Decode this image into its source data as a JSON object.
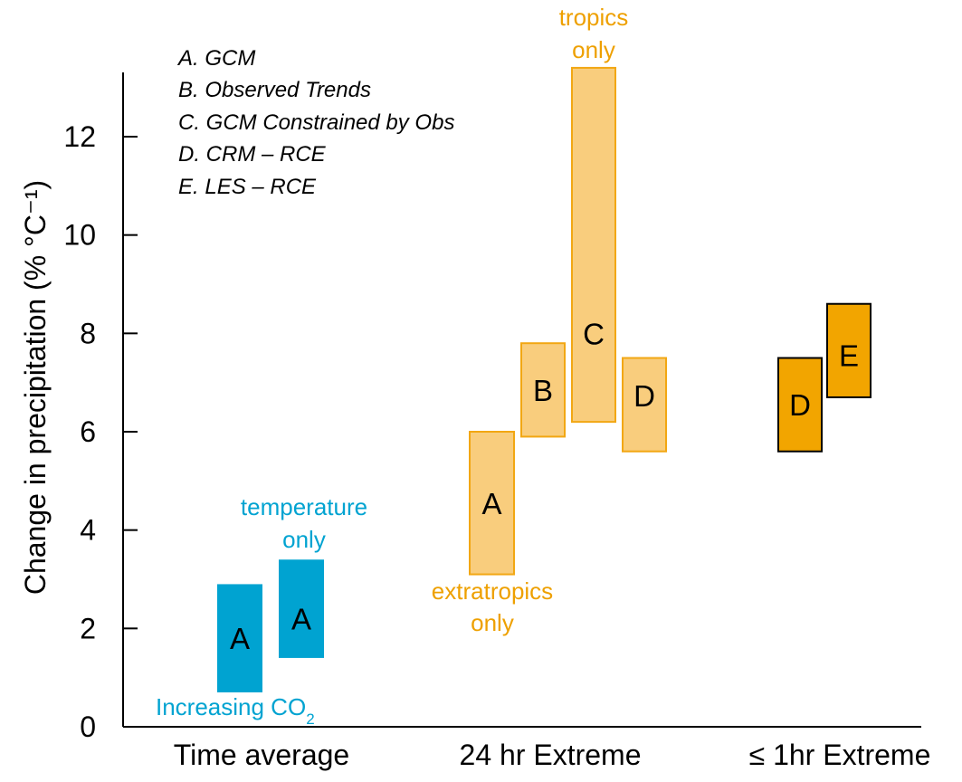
{
  "chart_data": {
    "type": "bar",
    "subtype": "floating-range",
    "ylabel": "Change in precipitation (% °C⁻¹)",
    "ylim": [
      0,
      13.4
    ],
    "yticks": [
      "0",
      "2",
      "4",
      "6",
      "8",
      "10",
      "12"
    ],
    "grid": false,
    "categories": [
      "Time average",
      "24 hr Extreme",
      "≤ 1hr Extreme"
    ],
    "legend": {
      "placement": "top-left",
      "items": [
        "A. GCM",
        "B. Observed Trends",
        "C. GCM Constrained by Obs",
        "D. CRM – RCE",
        "E. LES – RCE"
      ]
    },
    "colors": {
      "time_average": "#00a3d1",
      "extreme_24hr_fill": "#f9cd7d",
      "extreme_24hr_edge": "#f2a713",
      "extreme_1hr_fill": "#f2a500",
      "annotation_blue": "#00a3d1",
      "annotation_orange": "#eea000"
    },
    "ranges": [
      {
        "category": "Time average",
        "label": "A",
        "low": 0.7,
        "high": 2.9
      },
      {
        "category": "Time average",
        "label": "A",
        "low": 1.4,
        "high": 3.4
      },
      {
        "category": "24 hr Extreme",
        "label": "A",
        "low": 3.1,
        "high": 6.0
      },
      {
        "category": "24 hr Extreme",
        "label": "B",
        "low": 5.9,
        "high": 7.8
      },
      {
        "category": "24 hr Extreme",
        "label": "C",
        "low": 6.2,
        "high": 13.4
      },
      {
        "category": "24 hr Extreme",
        "label": "D",
        "low": 5.6,
        "high": 7.5
      },
      {
        "category": "≤ 1hr Extreme",
        "label": "D",
        "low": 5.6,
        "high": 7.5
      },
      {
        "category": "≤ 1hr Extreme",
        "label": "E",
        "low": 6.7,
        "high": 8.6
      }
    ],
    "annotations": [
      {
        "text": "Increasing CO",
        "subscript": "2",
        "attached_to": "Time average A (left)"
      },
      {
        "lines": [
          "temperature",
          "only"
        ],
        "attached_to": "Time average A (right)"
      },
      {
        "lines": [
          "extratropics",
          "only"
        ],
        "attached_to": "24 hr Extreme A"
      },
      {
        "lines": [
          "tropics",
          "only"
        ],
        "attached_to": "24 hr Extreme C"
      }
    ]
  }
}
